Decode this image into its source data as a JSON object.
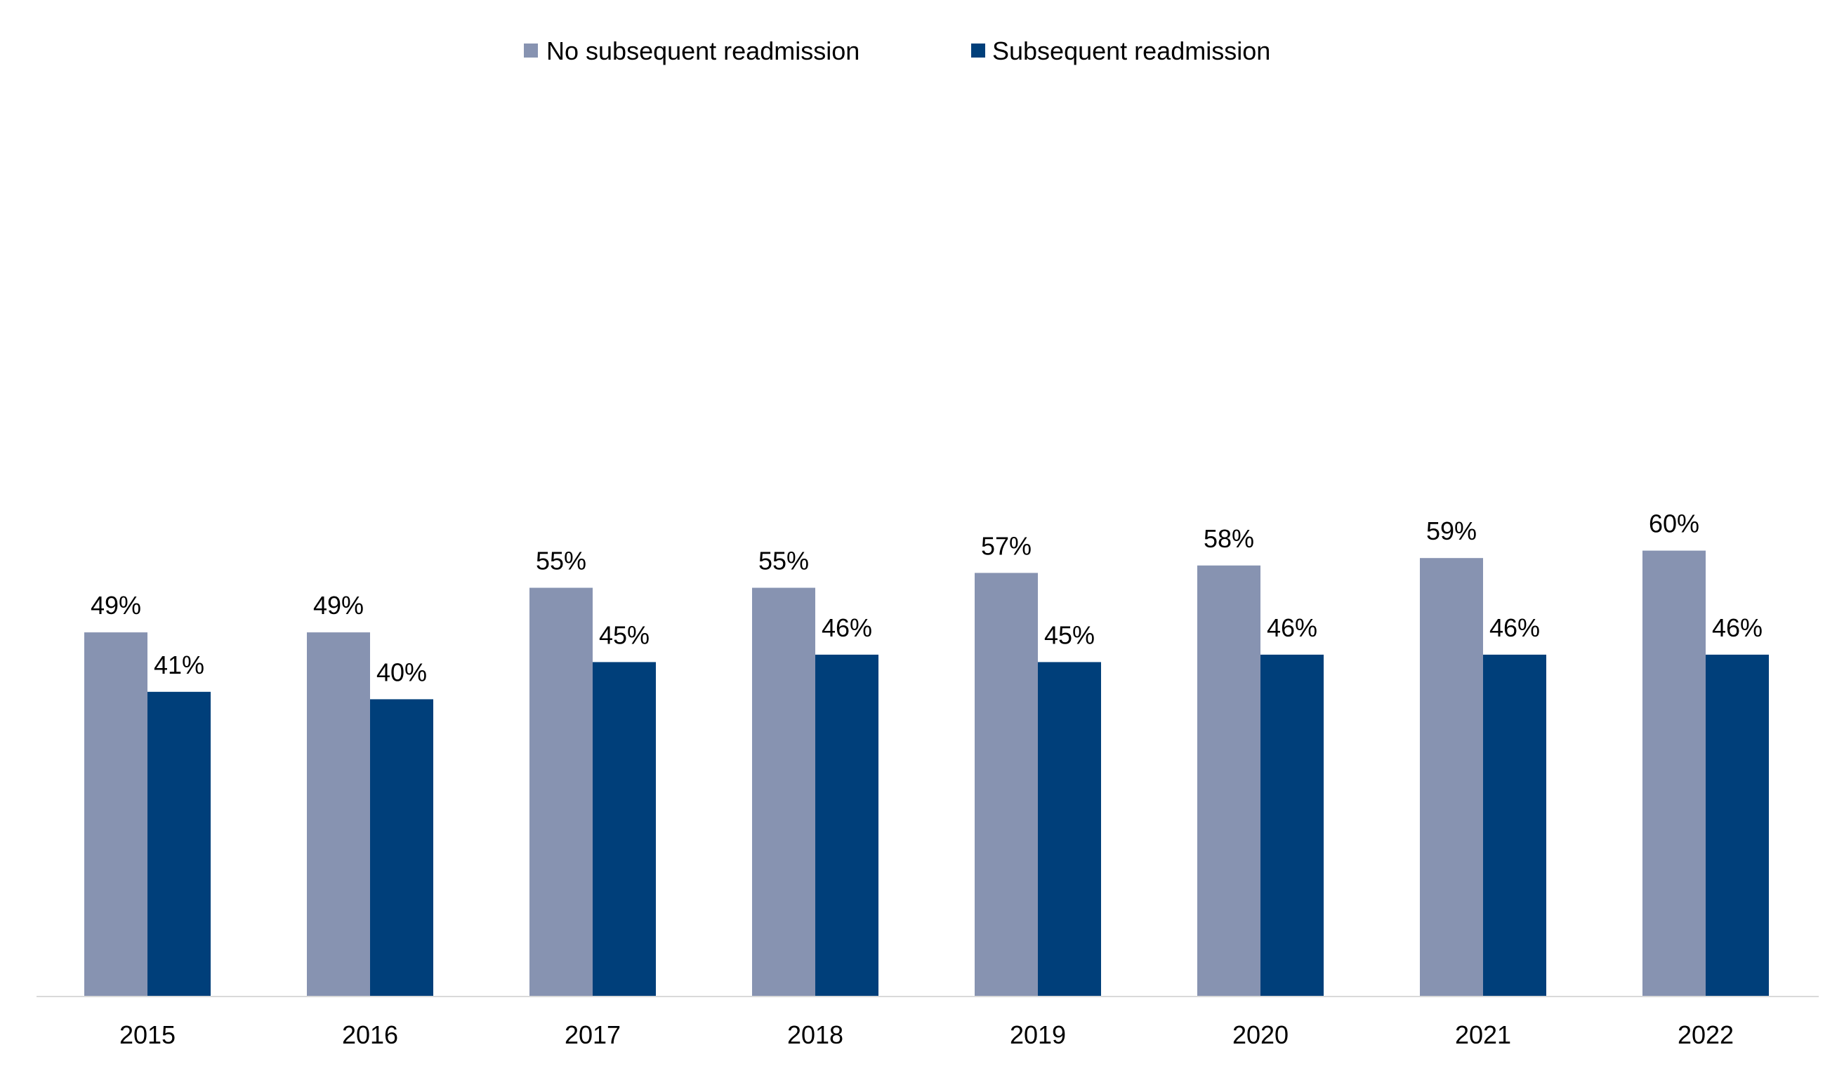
{
  "chart_data": {
    "type": "bar",
    "title": "",
    "xlabel": "",
    "ylabel": "",
    "ylim": [
      0,
      100
    ],
    "grid": false,
    "legend_position": "top-center",
    "categories": [
      "2015",
      "2016",
      "2017",
      "2018",
      "2019",
      "2020",
      "2021",
      "2022"
    ],
    "series": [
      {
        "name": "No subsequent readmission",
        "color": "#8793b1",
        "values": [
          49,
          49,
          55,
          55,
          57,
          58,
          59,
          60
        ],
        "labels": [
          "49%",
          "49%",
          "55%",
          "55%",
          "57%",
          "58%",
          "59%",
          "60%"
        ]
      },
      {
        "name": "Subsequent readmission",
        "color": "#003f7a",
        "values": [
          41,
          40,
          45,
          46,
          45,
          46,
          46,
          46
        ],
        "labels": [
          "41%",
          "40%",
          "45%",
          "46%",
          "45%",
          "46%",
          "46%",
          "46%"
        ]
      }
    ],
    "axis_color": "#d9d9d9"
  }
}
